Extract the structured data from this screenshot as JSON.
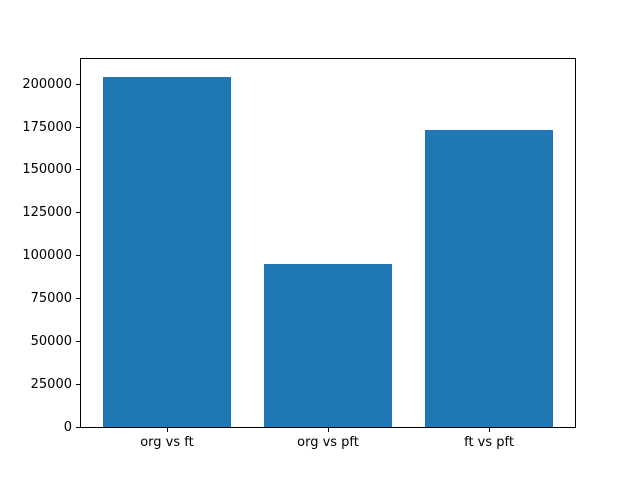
{
  "chart_data": {
    "type": "bar",
    "title": "",
    "xlabel": "",
    "ylabel": "",
    "categories": [
      "org vs ft",
      "org vs pft",
      "ft vs pft"
    ],
    "values": [
      204000,
      95000,
      173000
    ],
    "yticks": [
      0,
      25000,
      50000,
      75000,
      100000,
      125000,
      150000,
      175000,
      200000
    ],
    "ytick_labels": [
      "0",
      "25000",
      "50000",
      "75000",
      "100000",
      "125000",
      "150000",
      "175000",
      "200000"
    ],
    "ylim": [
      0,
      214900
    ],
    "xlim": [
      -0.54,
      2.54
    ],
    "bar_width": 0.8,
    "grid": false,
    "legend": null,
    "bar_color": "#1f77b4",
    "background_color": "#ffffff",
    "spine_color": "#000000",
    "tick_color": "#000000",
    "tick_label_color": "#000000"
  }
}
